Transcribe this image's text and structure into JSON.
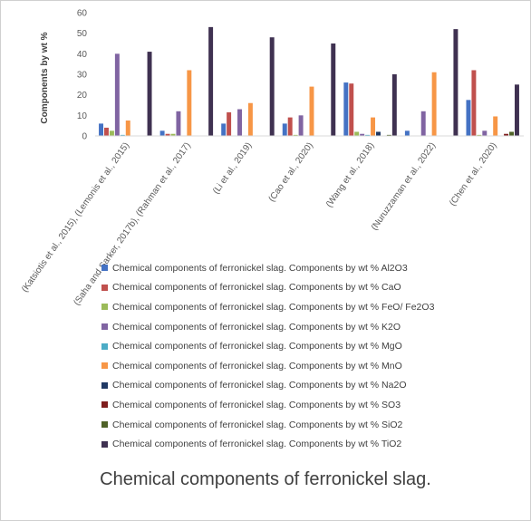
{
  "chart_data": {
    "type": "bar",
    "title": "Chemical components of ferronickel slag.",
    "ylabel": "Components by wt %",
    "xlabel": "",
    "ylim": [
      0,
      60
    ],
    "yticks": [
      0,
      10,
      20,
      30,
      40,
      50,
      60
    ],
    "grid": false,
    "legend_position": "bottom",
    "categories": [
      "(Katsiotis et al., 2015), (Lemonis et al., 2015)",
      "(Saha and Sarker, 2017b), (Rahman et al., 2017)",
      "(Li et al., 2019)",
      "(Cao et al., 2020)",
      "(Wang et al., 2018)",
      "(Nuruzzaman et al., 2022)",
      "(Chen et al., 2020)"
    ],
    "series": [
      {
        "name": "Chemical components of ferronickel slag. Components by wt % Al2O3",
        "color": "#4472c4",
        "values": [
          6,
          2.5,
          6,
          6,
          26,
          2.5,
          17.5
        ]
      },
      {
        "name": "Chemical components of ferronickel slag. Components by wt % CaO",
        "color": "#c0504d",
        "values": [
          4,
          1,
          11.5,
          9,
          25.5,
          0,
          32
        ]
      },
      {
        "name": "Chemical components of ferronickel slag. Components by wt % FeO/ Fe2O3",
        "color": "#9bbb59",
        "values": [
          2.5,
          1,
          0,
          0.5,
          2,
          0,
          0.5
        ]
      },
      {
        "name": "Chemical components of ferronickel slag. Components by wt % K2O",
        "color": "#8064a2",
        "values": [
          40,
          12,
          13,
          10,
          1,
          12,
          2.5
        ]
      },
      {
        "name": "Chemical components of ferronickel slag. Components by wt % MgO",
        "color": "#4bacc6",
        "values": [
          0.5,
          0,
          0,
          0,
          0.5,
          0,
          0
        ]
      },
      {
        "name": "Chemical components of ferronickel slag. Components by wt % MnO",
        "color": "#f79646",
        "values": [
          7.5,
          32,
          16,
          24,
          9,
          31,
          9.5
        ]
      },
      {
        "name": "Chemical components of ferronickel slag. Components by wt % Na2O",
        "color": "#1f3864",
        "values": [
          0,
          0,
          0,
          0,
          2,
          0,
          0
        ]
      },
      {
        "name": "Chemical components of ferronickel slag. Components by wt % SO3",
        "color": "#7f1d1d",
        "values": [
          0,
          0,
          0,
          0,
          0,
          0,
          1
        ]
      },
      {
        "name": "Chemical components of ferronickel slag. Components by wt % SiO2",
        "color": "#4f6228",
        "values": [
          0,
          0,
          0,
          0,
          0.5,
          0,
          2
        ]
      },
      {
        "name": "Chemical components of ferronickel slag. Components by wt % TiO2",
        "color": "#3f3151",
        "values": [
          41,
          53,
          48,
          45,
          30,
          52,
          25
        ]
      }
    ]
  }
}
